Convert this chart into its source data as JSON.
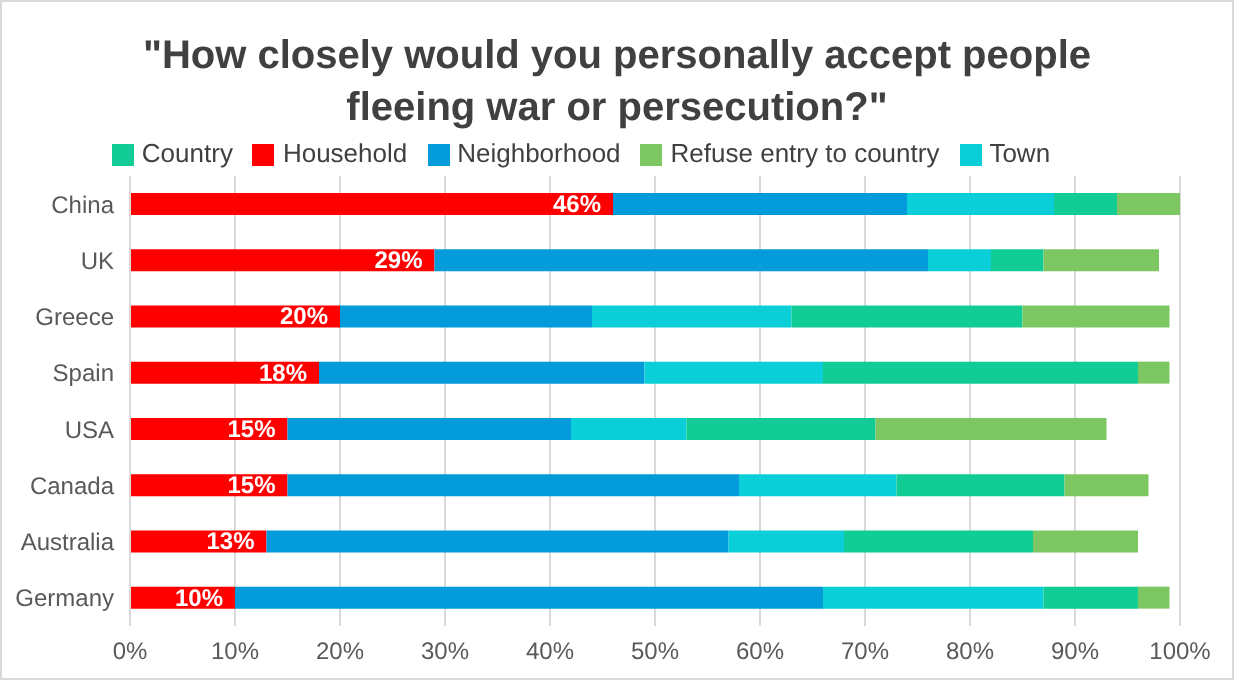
{
  "chart_data": {
    "type": "bar",
    "orientation": "horizontal",
    "stacked": true,
    "title": "\"How closely would you personally accept people fleeing war or persecution?\"",
    "categories": [
      "China",
      "UK",
      "Greece",
      "Spain",
      "USA",
      "Canada",
      "Australia",
      "Germany"
    ],
    "series": [
      {
        "name": "Household",
        "color": "#ff0000",
        "values": [
          46,
          29,
          20,
          18,
          15,
          15,
          13,
          10
        ],
        "value_labels": [
          "46%",
          "29%",
          "20%",
          "18%",
          "15%",
          "15%",
          "13%",
          "10%"
        ]
      },
      {
        "name": "Neighborhood",
        "color": "#039bd9",
        "values": [
          28,
          47,
          24,
          31,
          27,
          43,
          44,
          56
        ]
      },
      {
        "name": "Town",
        "color": "#0bcfd8",
        "values": [
          14,
          6,
          19,
          17,
          11,
          15,
          11,
          21
        ]
      },
      {
        "name": "Country",
        "color": "#12cc95",
        "values": [
          6,
          5,
          22,
          30,
          18,
          16,
          18,
          9
        ]
      },
      {
        "name": "Refuse entry to country",
        "color": "#7dc763",
        "values": [
          6,
          11,
          14,
          3,
          22,
          8,
          10,
          3
        ]
      }
    ],
    "xlim": [
      0,
      100
    ],
    "xticks": [
      {
        "value": 0,
        "label": "0%"
      },
      {
        "value": 10,
        "label": "10%"
      },
      {
        "value": 20,
        "label": "20%"
      },
      {
        "value": 30,
        "label": "30%"
      },
      {
        "value": 40,
        "label": "40%"
      },
      {
        "value": 50,
        "label": "50%"
      },
      {
        "value": 60,
        "label": "60%"
      },
      {
        "value": 70,
        "label": "70%"
      },
      {
        "value": 80,
        "label": "80%"
      },
      {
        "value": 90,
        "label": "90%"
      },
      {
        "value": 100,
        "label": "100%"
      }
    ],
    "grid": "x",
    "legend": "top"
  }
}
